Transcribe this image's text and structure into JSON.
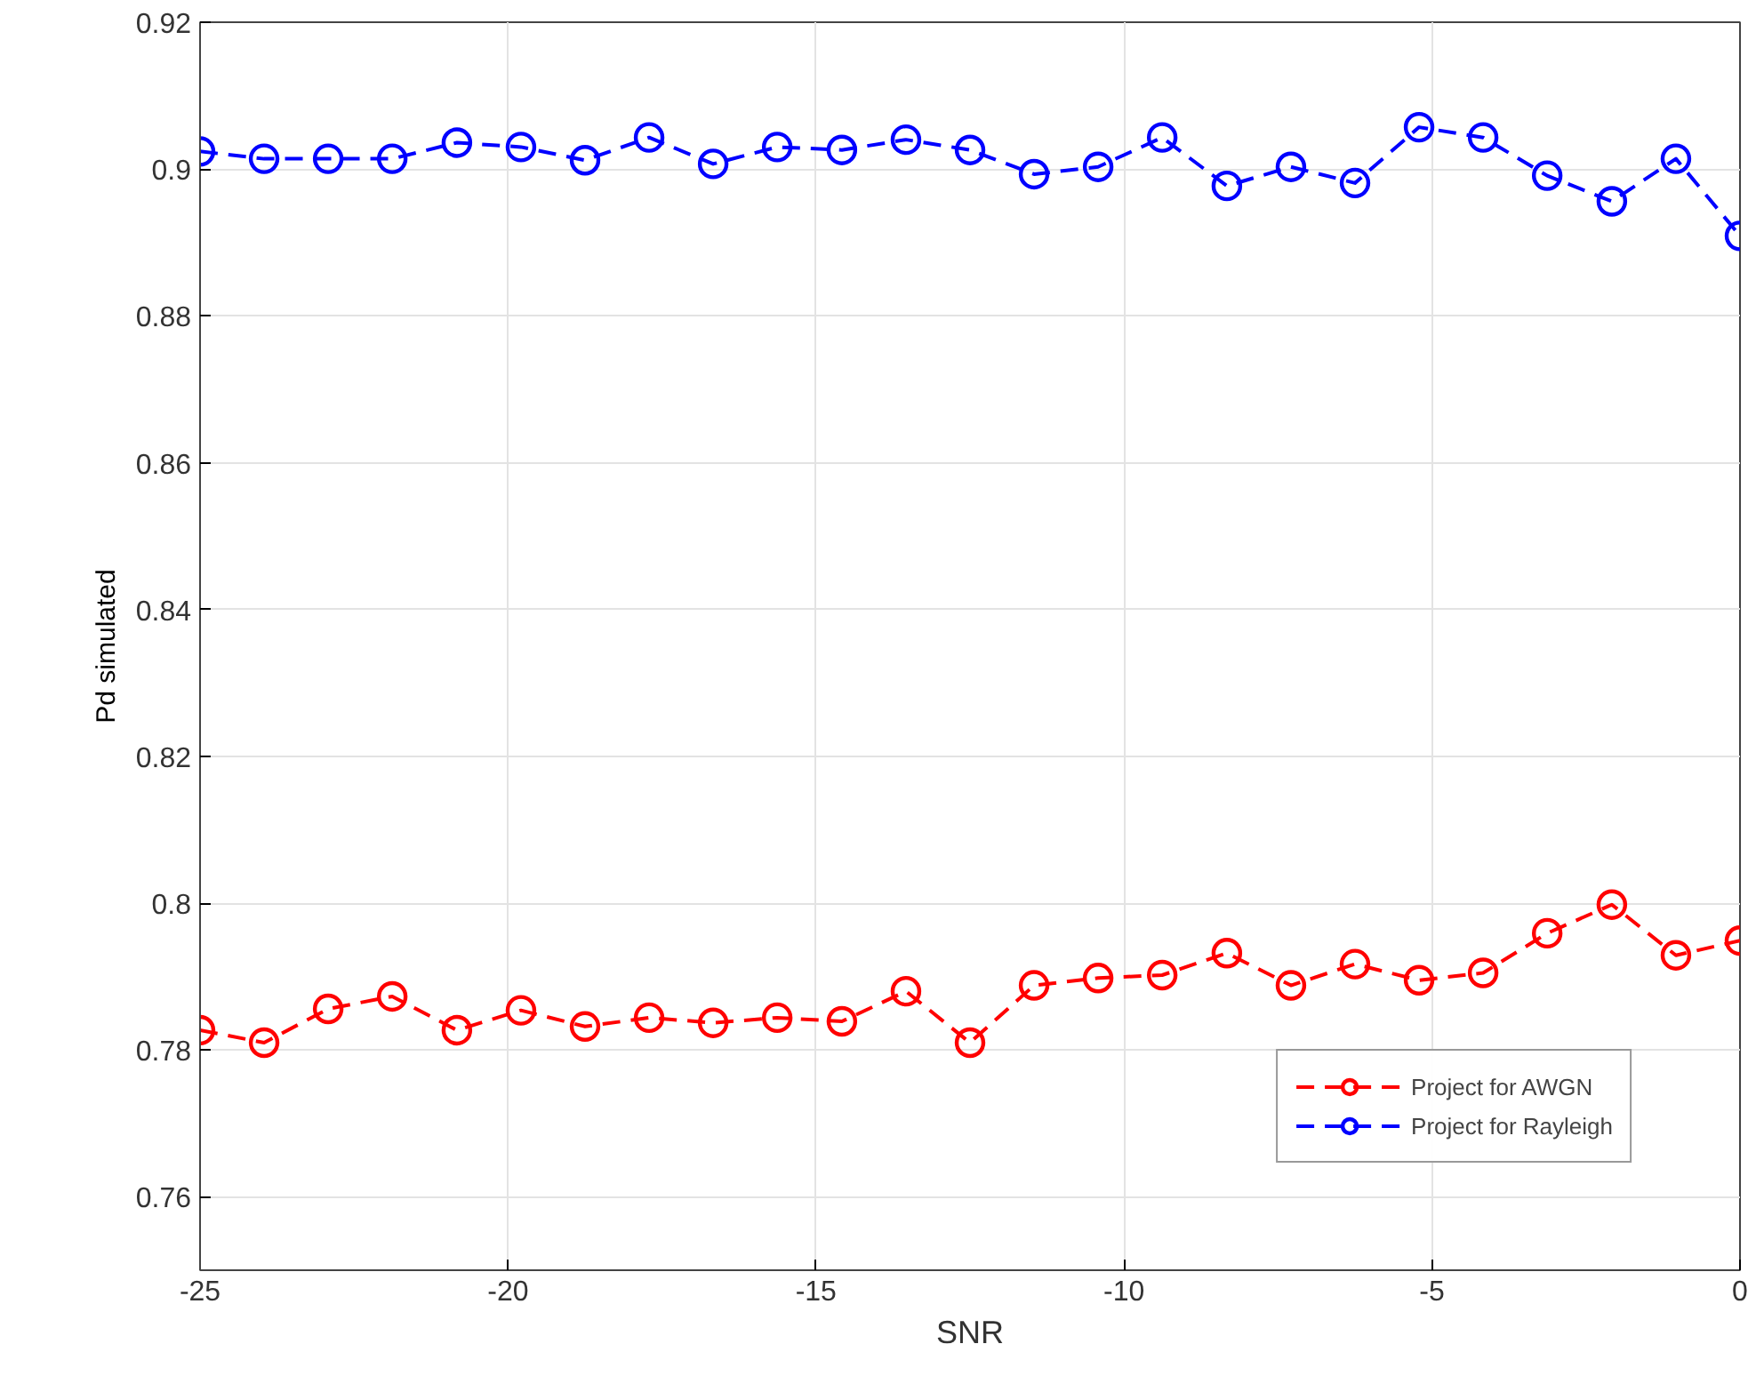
{
  "chart_data": {
    "type": "line",
    "xlabel": "SNR",
    "ylabel": "Pd simulated",
    "x": [
      -25,
      -23.96,
      -22.92,
      -21.88,
      -20.83,
      -19.79,
      -18.75,
      -17.71,
      -16.67,
      -15.63,
      -14.58,
      -13.54,
      -12.5,
      -11.46,
      -10.42,
      -9.38,
      -8.33,
      -7.29,
      -6.25,
      -5.21,
      -4.17,
      -3.13,
      -2.08,
      -1.04,
      0
    ],
    "series": [
      {
        "name": "Project for AWGN",
        "color": "#ff0000",
        "values": [
          0.7827,
          0.781,
          0.7856,
          0.7873,
          0.7827,
          0.7854,
          0.7832,
          0.7844,
          0.7837,
          0.7844,
          0.7839,
          0.788,
          0.781,
          0.7888,
          0.7898,
          0.7902,
          0.7932,
          0.7888,
          0.7917,
          0.7895,
          0.7905,
          0.7959,
          0.7998,
          0.7929,
          0.7949
        ]
      },
      {
        "name": "Project for Rayleigh",
        "color": "#0000ff",
        "values": [
          0.9024,
          0.9014,
          0.9014,
          0.9014,
          0.9036,
          0.903,
          0.9012,
          0.9043,
          0.9007,
          0.903,
          0.9026,
          0.904,
          0.9026,
          0.8993,
          0.9003,
          0.9043,
          0.8977,
          0.9003,
          0.8981,
          0.9057,
          0.9043,
          0.8991,
          0.8956,
          0.9014,
          0.8909
        ]
      }
    ],
    "xlim": [
      -25,
      0
    ],
    "xticks": [
      -25,
      -20,
      -15,
      -10,
      -5,
      0
    ],
    "ylim": [
      0.75,
      0.92
    ],
    "yticks": [
      0.76,
      0.78,
      0.8,
      0.82,
      0.84,
      0.86,
      0.88,
      0.9,
      0.92
    ],
    "grid": true,
    "legend": "bottom right",
    "marker": "circle",
    "line_style": "dashed"
  }
}
